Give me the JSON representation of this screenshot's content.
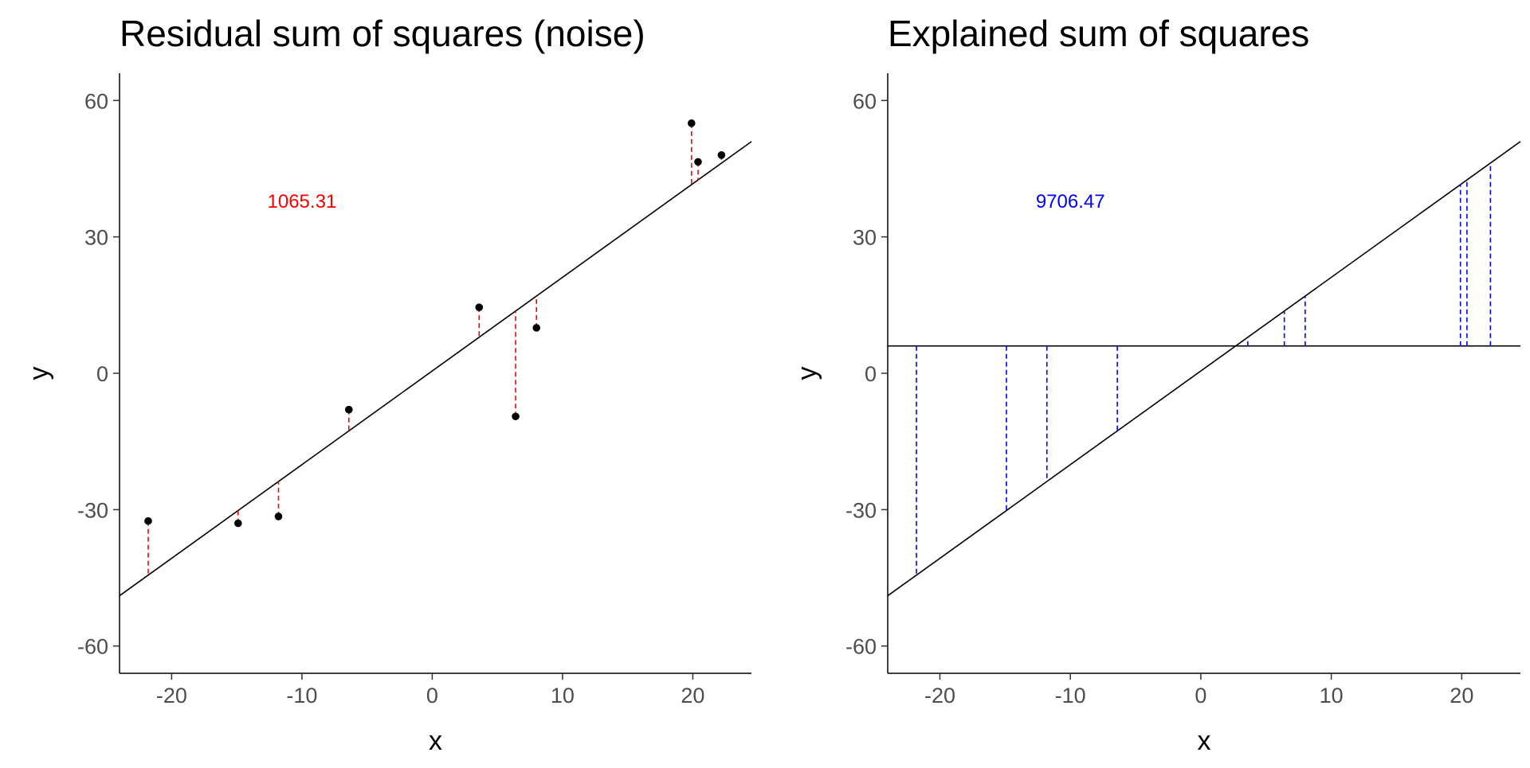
{
  "chart_data": [
    {
      "type": "scatter",
      "title": "Residual sum of squares (noise)",
      "xlabel": "x",
      "ylabel": "y",
      "xlim": [
        -24,
        24.5
      ],
      "ylim": [
        -66,
        66
      ],
      "xticks": [
        -20,
        -10,
        0,
        10,
        20
      ],
      "yticks": [
        -60,
        -30,
        0,
        30,
        60
      ],
      "xtick_labels": [
        "-20",
        "-10",
        "0",
        "10",
        "20"
      ],
      "ytick_labels": [
        "-60",
        "-30",
        "0",
        "30",
        "60"
      ],
      "grid": false,
      "points": [
        {
          "x": -21.8,
          "y": -32.5
        },
        {
          "x": -14.9,
          "y": -33.0
        },
        {
          "x": -11.8,
          "y": -31.5
        },
        {
          "x": -6.4,
          "y": -8.0
        },
        {
          "x": 3.6,
          "y": 14.5
        },
        {
          "x": 6.4,
          "y": -9.5
        },
        {
          "x": 8.0,
          "y": 10.0
        },
        {
          "x": 19.9,
          "y": 55.0
        },
        {
          "x": 20.4,
          "y": 46.5
        },
        {
          "x": 22.2,
          "y": 48.0
        }
      ],
      "fit_line": {
        "slope": 2.06,
        "intercept": 0.5
      },
      "segments": "residual",
      "segment_color": "#ff0000",
      "annotation": {
        "text": "1065.31",
        "x": -10,
        "y": 38,
        "color": "#ff0000"
      }
    },
    {
      "type": "line",
      "title": "Explained sum of squares",
      "xlabel": "x",
      "ylabel": "y",
      "xlim": [
        -24,
        24.5
      ],
      "ylim": [
        -66,
        66
      ],
      "xticks": [
        -20,
        -10,
        0,
        10,
        20
      ],
      "yticks": [
        -60,
        -30,
        0,
        30,
        60
      ],
      "xtick_labels": [
        "-20",
        "-10",
        "0",
        "10",
        "20"
      ],
      "ytick_labels": [
        "-60",
        "-30",
        "0",
        "30",
        "60"
      ],
      "grid": false,
      "x_values": [
        -21.8,
        -14.9,
        -11.8,
        -6.4,
        3.6,
        6.4,
        8.0,
        19.9,
        20.4,
        22.2
      ],
      "fit_line": {
        "slope": 2.06,
        "intercept": 0.5
      },
      "mean_line": {
        "y": 6.0
      },
      "segments": "explained",
      "segment_color": "#0000ff",
      "annotation": {
        "text": "9706.47",
        "x": -10,
        "y": 38,
        "color": "#0000ff"
      }
    }
  ]
}
